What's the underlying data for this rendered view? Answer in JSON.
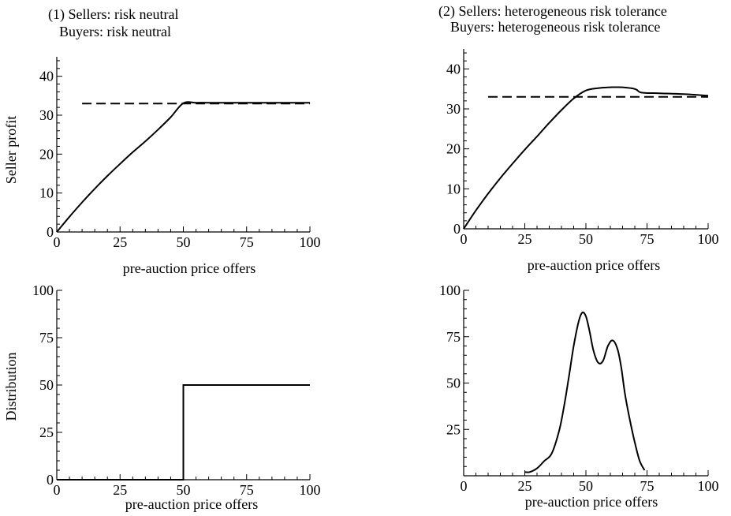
{
  "chart_data": [
    {
      "type": "line",
      "title": "(1) Sellers: risk neutral",
      "subtitle": "Buyers: risk neutral",
      "xlabel": "pre-auction price offers",
      "ylabel": "Seller profit",
      "xlim": [
        0,
        100
      ],
      "ylim": [
        0,
        45
      ],
      "x_ticks": [
        "0",
        "25",
        "50",
        "75",
        "100"
      ],
      "y_ticks": [
        "0",
        "10",
        "20",
        "30",
        "40"
      ],
      "series": [
        {
          "style": "solid",
          "x": [
            0,
            5,
            10,
            15,
            20,
            25,
            30,
            35,
            40,
            45,
            50,
            55,
            60,
            70,
            80,
            90,
            100
          ],
          "y": [
            0,
            3.9,
            7.6,
            11.1,
            14.4,
            17.5,
            20.5,
            23.3,
            26.3,
            29.5,
            33.1,
            33.2,
            33.2,
            33.2,
            33.2,
            33.2,
            33.2
          ]
        },
        {
          "style": "dashed",
          "x": [
            10,
            100
          ],
          "y": [
            33,
            33
          ]
        }
      ]
    },
    {
      "type": "line",
      "title": "(2) Sellers: heterogeneous risk tolerance",
      "subtitle": "Buyers: heterogeneous risk tolerance",
      "xlabel": "pre-auction price offers",
      "ylabel": "",
      "xlim": [
        0,
        100
      ],
      "ylim": [
        0,
        45
      ],
      "x_ticks": [
        "0",
        "25",
        "50",
        "75",
        "100"
      ],
      "y_ticks": [
        "0",
        "10",
        "20",
        "30",
        "40"
      ],
      "series": [
        {
          "style": "solid",
          "x": [
            0,
            5,
            10,
            15,
            20,
            25,
            30,
            35,
            40,
            45,
            50,
            55,
            60,
            65,
            70,
            72,
            74,
            80,
            90,
            100
          ],
          "y": [
            0,
            4.6,
            8.8,
            12.7,
            16.3,
            19.8,
            23.1,
            26.5,
            29.7,
            32.6,
            34.6,
            35.2,
            35.4,
            35.4,
            35.0,
            34.2,
            34.0,
            33.9,
            33.7,
            33.3
          ]
        },
        {
          "style": "dashed",
          "x": [
            10,
            100
          ],
          "y": [
            33,
            33
          ]
        }
      ]
    },
    {
      "type": "line",
      "title": "",
      "xlabel": "pre-auction price offers",
      "ylabel": "Distribution",
      "xlim": [
        0,
        100
      ],
      "ylim": [
        0,
        100
      ],
      "x_ticks": [
        "0",
        "25",
        "50",
        "75",
        "100"
      ],
      "y_ticks": [
        "0",
        "25",
        "50",
        "75",
        "100"
      ],
      "series": [
        {
          "style": "solid",
          "x": [
            0,
            50,
            50,
            100
          ],
          "y": [
            0,
            0,
            50,
            50
          ]
        }
      ]
    },
    {
      "type": "line",
      "title": "",
      "xlabel": "pre-auction price offers",
      "ylabel": "",
      "xlim": [
        0,
        100
      ],
      "ylim": [
        0,
        100
      ],
      "x_ticks": [
        "0",
        "25",
        "50",
        "75",
        "100"
      ],
      "y_ticks": [
        "25",
        "50",
        "75",
        "100"
      ],
      "series": [
        {
          "style": "solid",
          "x": [
            25,
            27,
            30,
            33,
            36,
            39,
            41,
            43,
            45,
            47,
            48.5,
            50,
            51.5,
            53,
            55,
            57,
            59,
            61,
            63,
            64.5,
            66,
            68,
            70,
            72,
            74
          ],
          "y": [
            2,
            2,
            4,
            8,
            12,
            24,
            37,
            53,
            70,
            83,
            88,
            86,
            78,
            68,
            61,
            62,
            70,
            73,
            68,
            58,
            44,
            30,
            18,
            8,
            3
          ]
        }
      ]
    }
  ]
}
